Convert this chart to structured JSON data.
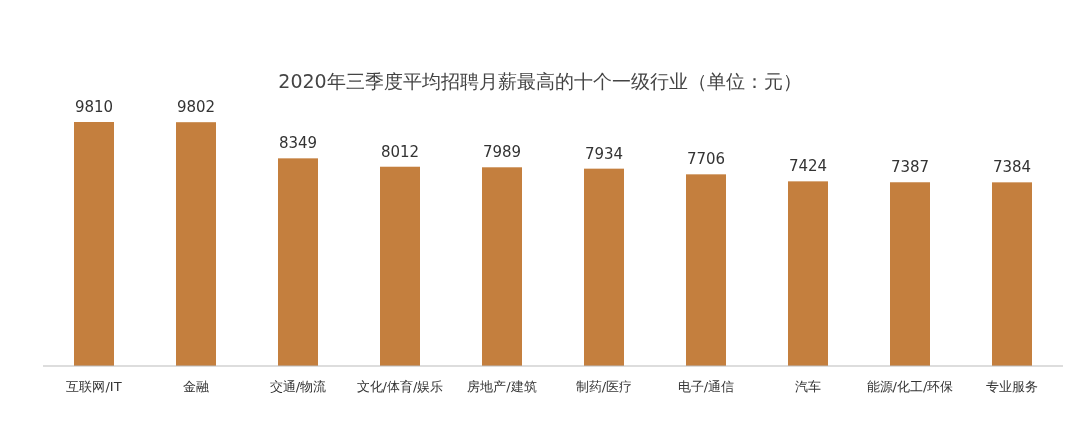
{
  "chart_data": {
    "type": "bar",
    "title": "2020年三季度平均招聘月薪最高的十个一级行业（单位：元）",
    "categories": [
      "互联网/IT",
      "金融",
      "交通/物流",
      "文化/体育/娱乐",
      "房地产/建筑",
      "制药/医疗",
      "电子/通信",
      "汽车",
      "能源/化工/环保",
      "专业服务"
    ],
    "values": [
      9810,
      9802,
      8349,
      8012,
      7989,
      7934,
      7706,
      7424,
      7387,
      7384
    ],
    "color": "#c47f3e",
    "data_labels": true
  }
}
